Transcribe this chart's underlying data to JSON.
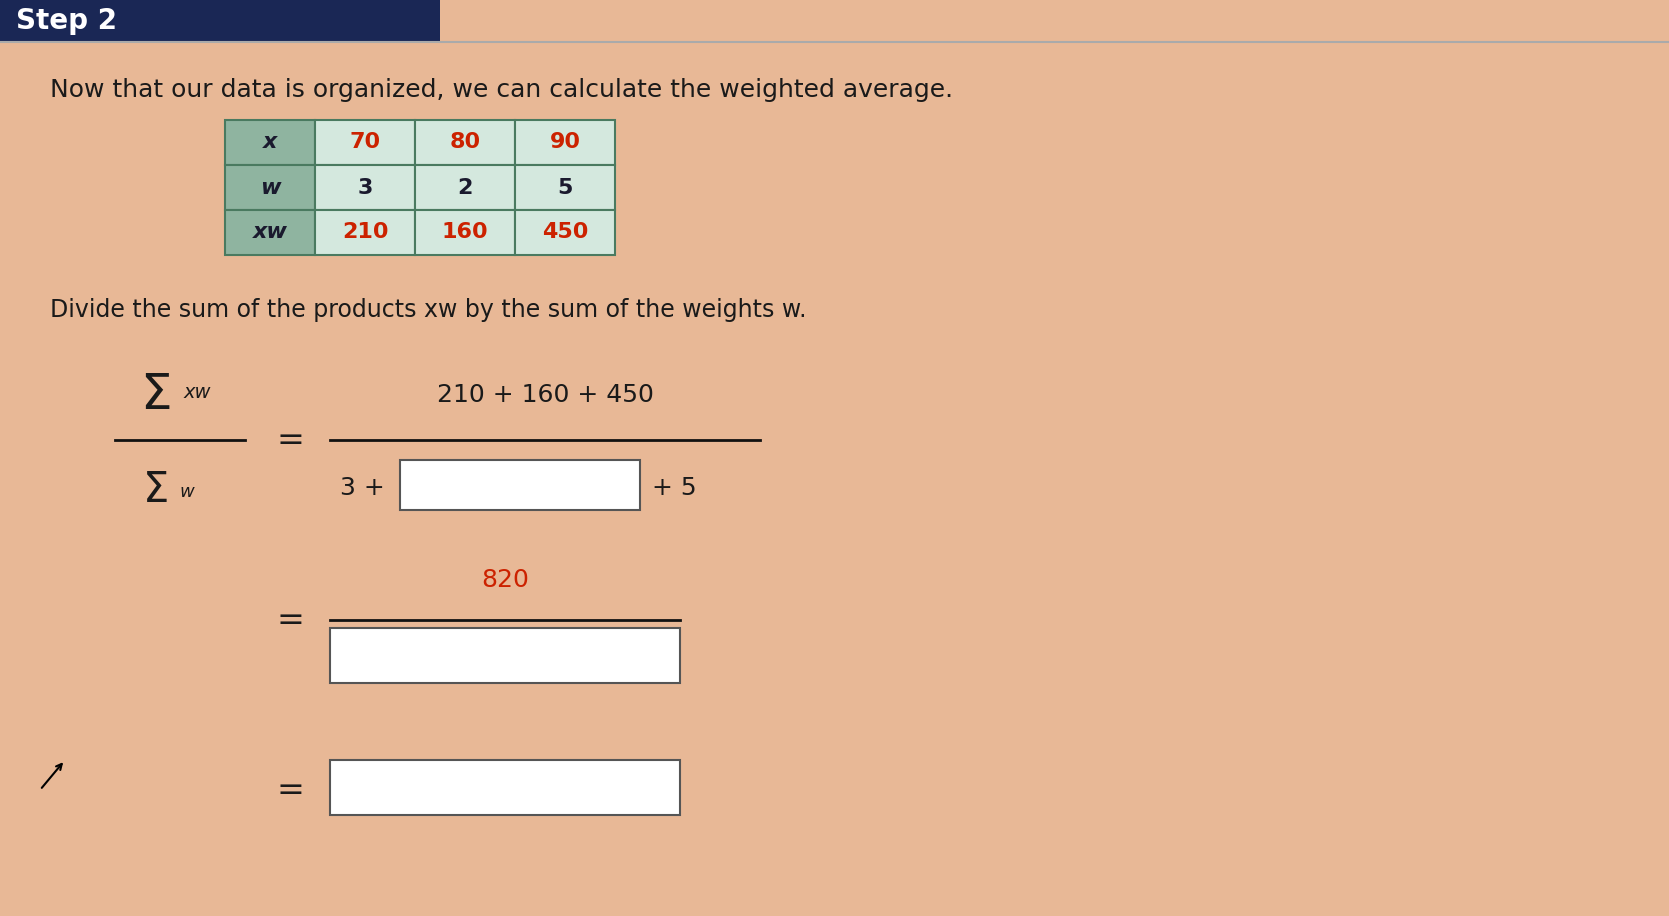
{
  "bg_color": "#e8b896",
  "header_bg": "#1a2755",
  "header_text": "Step 2",
  "header_text_color": "#ffffff",
  "main_bg": "#e8b896",
  "title_text": "Now that our data is organized, we can calculate the weighted average.",
  "subtitle_text": "Divide the sum of the products xw by the sum of the weights w.",
  "table_cell_bg": "#8fb4a0",
  "table_data_bg": "#d4e8de",
  "table_border_color": "#4a7a60",
  "table_red_color": "#cc2200",
  "table_dark_text": "#1a1a2e",
  "fraction_line_color": "#111111",
  "box_color": "#ffffff",
  "box_border": "#555555",
  "red_text_color": "#cc2200",
  "black_text_color": "#1a1a1a",
  "dark_blue": "#1a2755",
  "col_headers": [
    "70",
    "80",
    "90"
  ],
  "row_labels": [
    "x",
    "w",
    "xw"
  ],
  "w_row": [
    "3",
    "2",
    "5"
  ],
  "xw_row": [
    "210",
    "160",
    "450"
  ]
}
